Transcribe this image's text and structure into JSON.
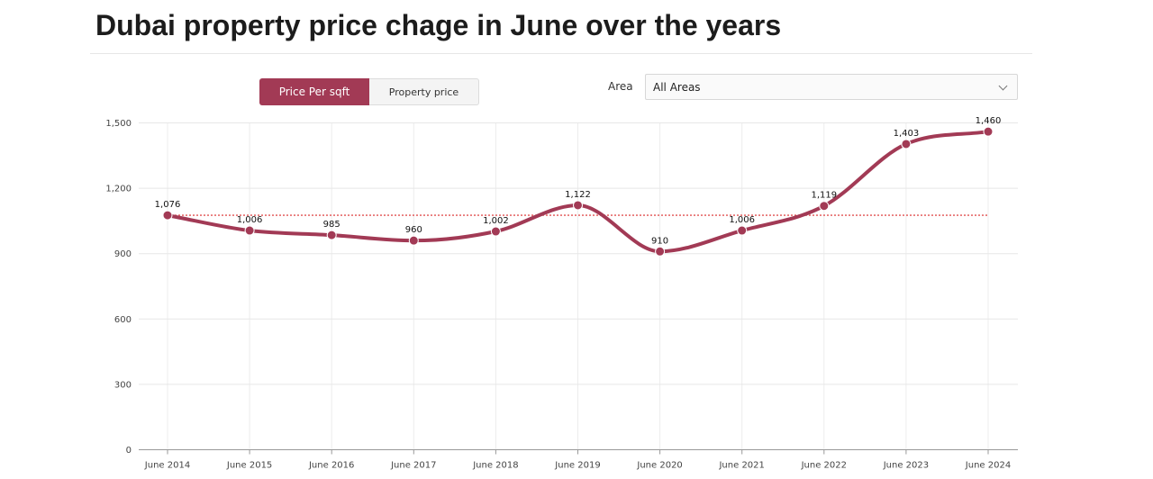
{
  "header": {
    "title": "Dubai property price chage in June over the years"
  },
  "controls": {
    "toggle_options": [
      "Price Per sqft",
      "Property price"
    ],
    "selected_toggle": "Price Per sqft",
    "area_label": "Area",
    "area_value": "All Areas"
  },
  "colors": {
    "accent": "#a23a55",
    "reference_line": "#e05050"
  },
  "chart_data": {
    "type": "line",
    "title": "Dubai property price chage in June over the years",
    "categories": [
      "June 2014",
      "June 2015",
      "June 2016",
      "June 2017",
      "June 2018",
      "June 2019",
      "June 2020",
      "June 2021",
      "June 2022",
      "June 2023",
      "June 2024"
    ],
    "series": [
      {
        "values": [
          1076,
          1006,
          985,
          960,
          1002,
          1122,
          910,
          1006,
          1119,
          1403,
          1460
        ]
      }
    ],
    "data_labels": [
      "1,076",
      "1,006",
      "985",
      "960",
      "1,002",
      "1,122",
      "910",
      "1,006",
      "1,119",
      "1,403",
      "1,460"
    ],
    "reference_line": {
      "value": 1076,
      "style": "dotted"
    },
    "ylim": [
      0,
      1500
    ],
    "yticks": [
      0,
      300,
      600,
      900,
      1200,
      1500
    ],
    "ytick_labels": [
      "0",
      "300",
      "600",
      "900",
      "1,200",
      "1,500"
    ],
    "xlabel": "",
    "ylabel": "",
    "grid": true,
    "smooth": true
  }
}
